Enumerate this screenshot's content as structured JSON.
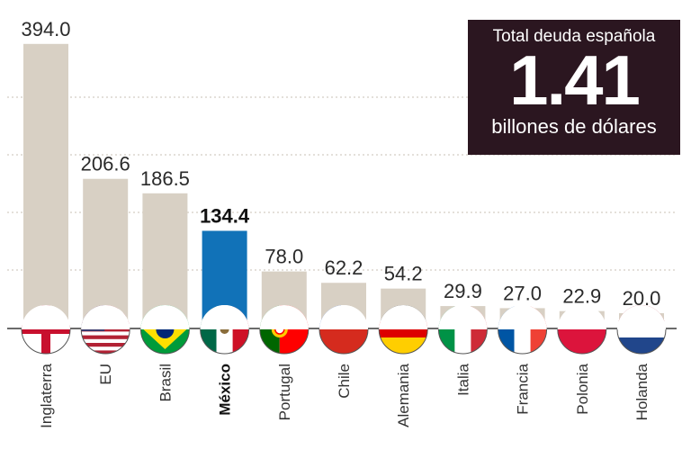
{
  "chart_data": {
    "type": "bar",
    "title": "",
    "xlabel": "",
    "ylabel": "",
    "ylim": [
      0,
      400
    ],
    "grid": true,
    "categories": [
      "Inglaterra",
      "EU",
      "Brasil",
      "México",
      "Portugal",
      "Chile",
      "Alemania",
      "Italia",
      "Francia",
      "Polonia",
      "Holanda"
    ],
    "values": [
      394.0,
      206.6,
      186.5,
      134.4,
      78.0,
      62.2,
      54.2,
      29.9,
      27.0,
      22.9,
      20.0
    ],
    "value_labels": [
      "394.0",
      "206.6",
      "186.5",
      "134.4",
      "78.0",
      "62.2",
      "54.2",
      "29.9",
      "27.0",
      "22.9",
      "20.0"
    ],
    "highlight": "México",
    "colors": {
      "bar": "#d8d0c4",
      "highlight": "#1172b8",
      "grid": "#c9c0b4",
      "baseline": "#3a3a3a"
    },
    "flag_icons": [
      "england-flag-icon",
      "usa-flag-icon",
      "brazil-flag-icon",
      "mexico-flag-icon",
      "portugal-flag-icon",
      "chile-flag-icon",
      "germany-flag-icon",
      "italy-flag-icon",
      "france-flag-icon",
      "poland-flag-icon",
      "netherlands-flag-icon"
    ]
  },
  "total_box": {
    "title": "Total deuda española",
    "value": "1.41",
    "unit": "billones de dólares"
  }
}
